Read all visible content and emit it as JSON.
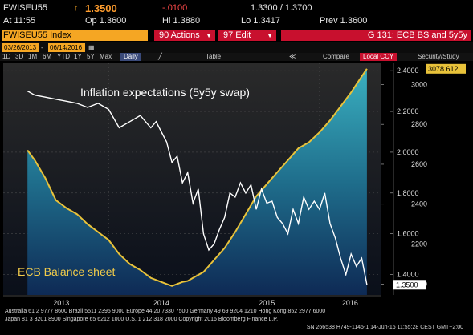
{
  "quote": {
    "ticker": "FWISEU55",
    "last_arrow": "↑",
    "last": "1.3500",
    "change": "-.0100",
    "bid_ask": "1.3300 / 1.3700",
    "time_label": "At 11:55",
    "open": "Op 1.3600",
    "high": "Hi 1.3880",
    "low": "Lo 1.3417",
    "prev": "Prev  1.3600"
  },
  "command_bar": {
    "ticker_index": "FWISEU55 Index",
    "actions": "90 Actions",
    "edit": "97 Edit",
    "title": "G 131: ECB BS and 5y5y"
  },
  "toolbar": {
    "start_date": "03/26/2013",
    "end_date": "06/14/2016",
    "ranges": [
      "1D",
      "3D",
      "1M",
      "6M",
      "YTD",
      "1Y",
      "5Y",
      "Max"
    ],
    "frequency": "Daily",
    "table": "Table",
    "compare_label": "Compare",
    "currency": "Local CCY",
    "security_study": "Security/Study"
  },
  "colors": {
    "orange": "#f5a623",
    "red": "#c8102e",
    "teal": "#3a9fb0",
    "balance_line": "#e8c23a",
    "inflation_line": "#ffffff"
  },
  "chart_data": {
    "type": "line",
    "annotations": [
      "Inflation expectations (5y5y swap)",
      "ECB Balance sheet"
    ],
    "x_ticks": [
      "2013",
      "2014",
      "2015",
      "2016"
    ],
    "right_axis_outer": {
      "ticks": [
        "2.4000",
        "2.2000",
        "2.0000",
        "1.8000",
        "1.6000",
        "1.4000"
      ],
      "range": [
        1.3,
        2.44
      ]
    },
    "right_axis_inner": {
      "ticks": [
        "3000",
        "2800",
        "2600",
        "2400",
        "2200",
        "2000"
      ],
      "range": [
        1945,
        3110
      ]
    },
    "last_labels": {
      "balance": "3078.612",
      "inflation": "1.3500"
    },
    "series": [
      {
        "name": "Inflation expectations (5y5y swap)",
        "axis": "outer",
        "x": [
          2013.23,
          2013.3,
          2013.4,
          2013.5,
          2013.6,
          2013.7,
          2013.8,
          2013.9,
          2014.0,
          2014.1,
          2014.2,
          2014.3,
          2014.4,
          2014.45,
          2014.5,
          2014.55,
          2014.6,
          2014.65,
          2014.7,
          2014.75,
          2014.8,
          2014.85,
          2014.9,
          2014.95,
          2015.0,
          2015.05,
          2015.1,
          2015.15,
          2015.2,
          2015.25,
          2015.3,
          2015.35,
          2015.4,
          2015.45,
          2015.5,
          2015.55,
          2015.6,
          2015.65,
          2015.7,
          2015.75,
          2015.8,
          2015.85,
          2015.9,
          2015.95,
          2016.0,
          2016.05,
          2016.1,
          2016.15,
          2016.2,
          2016.25,
          2016.3,
          2016.35,
          2016.4,
          2016.45
        ],
        "y": [
          2.3,
          2.28,
          2.27,
          2.26,
          2.25,
          2.24,
          2.22,
          2.24,
          2.21,
          2.12,
          2.15,
          2.18,
          2.12,
          2.15,
          2.1,
          2.05,
          1.95,
          1.98,
          1.85,
          1.9,
          1.75,
          1.82,
          1.6,
          1.52,
          1.55,
          1.62,
          1.68,
          1.8,
          1.78,
          1.85,
          1.8,
          1.84,
          1.72,
          1.82,
          1.75,
          1.76,
          1.68,
          1.65,
          1.6,
          1.72,
          1.65,
          1.78,
          1.72,
          1.76,
          1.72,
          1.8,
          1.65,
          1.58,
          1.48,
          1.4,
          1.5,
          1.44,
          1.48,
          1.35
        ]
      },
      {
        "name": "ECB Balance sheet",
        "axis": "inner",
        "x": [
          2013.23,
          2013.3,
          2013.4,
          2013.5,
          2013.6,
          2013.7,
          2013.8,
          2013.9,
          2014.0,
          2014.1,
          2014.2,
          2014.3,
          2014.4,
          2014.5,
          2014.6,
          2014.65,
          2014.7,
          2014.75,
          2014.8,
          2014.9,
          2015.0,
          2015.1,
          2015.2,
          2015.3,
          2015.4,
          2015.5,
          2015.6,
          2015.7,
          2015.8,
          2015.9,
          2016.0,
          2016.1,
          2016.2,
          2016.3,
          2016.4,
          2016.45
        ],
        "y": [
          2670,
          2620,
          2530,
          2420,
          2380,
          2350,
          2300,
          2260,
          2220,
          2150,
          2100,
          2070,
          2030,
          2010,
          1990,
          2000,
          2010,
          2015,
          2030,
          2060,
          2120,
          2180,
          2260,
          2350,
          2440,
          2500,
          2560,
          2620,
          2680,
          2710,
          2760,
          2820,
          2890,
          2960,
          3040,
          3078.612
        ]
      }
    ]
  },
  "footer": {
    "line1": "Australia 61 2 9777 8600 Brazil 5511 2395 9000 Europe 44 20 7330 7500 Germany 49 69 9204 1210 Hong Kong 852 2977 6000",
    "line2": "Japan 81 3 3201 8900          Singapore 65 6212 1000          U.S. 1 212 318 2000          Copyright 2016 Bloomberg Finance L.P.",
    "line3": "SN 266538 H749-1145-1 14-Jun-16 11:55:28 CEST GMT+2:00"
  }
}
